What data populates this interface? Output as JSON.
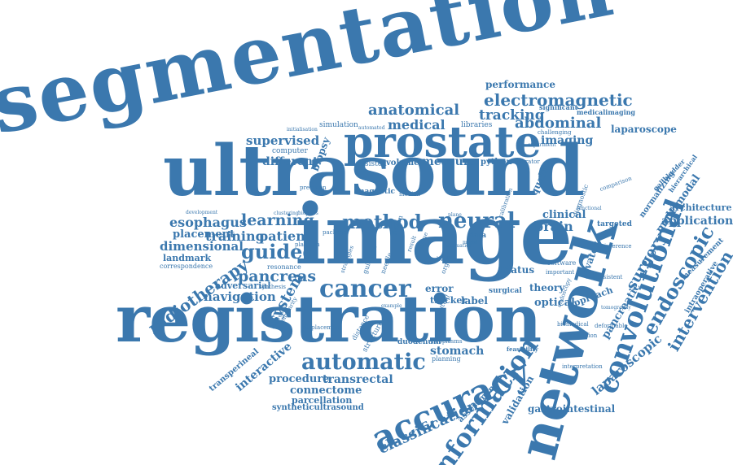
{
  "colors": {
    "text": "#3b78ae",
    "background": "#ffffff"
  },
  "words": {
    "segmentation": "segmentation",
    "ultrasound": "ultrasound",
    "image": "image",
    "registration": "registration",
    "network": "network",
    "prostate": "prostate",
    "convolutional": "convolutional",
    "accuracy": "accuracy",
    "information": "information",
    "electromagnetic": "electromagnetic",
    "abdominal": "abdominal",
    "tracking": "tracking",
    "anatomical": "anatomical",
    "medical": "medical",
    "imaging": "imaging",
    "performance": "performance",
    "laparoscope": "laparoscope",
    "cancer": "cancer",
    "automatic": "automatic",
    "classification": "classification",
    "endoscopic": "endoscopic",
    "intervention": "intervention",
    "laparoscopic": "laparoscopic",
    "method": "method",
    "neural": "neural",
    "learning": "learning",
    "guided": "guided",
    "pancreas": "pancreas",
    "training": "training",
    "patient": "patient",
    "dimensional": "dimensional",
    "esophagus": "esophagus",
    "placement": "placement",
    "landmark": "landmark",
    "correspondence": "correspondence",
    "radiotherapy": "radiotherapy",
    "navigation": "navigation",
    "adversarial": "adversarial",
    "system": "system",
    "surgery": "surgery",
    "application": "application",
    "multimodal": "multimodal",
    "architecture": "architecture",
    "measure": "measure",
    "volume": "volume",
    "python": "python",
    "supervised": "supervised",
    "computer": "computer",
    "different": "different",
    "biopsy": "biopsy",
    "simulation": "simulation",
    "libraries": "libraries",
    "significant": "significant",
    "medicalimaging": "medicalimaging",
    "brain": "brain",
    "clinical": "clinical",
    "data": "data",
    "error": "error",
    "tracker": "tracker",
    "label": "label",
    "optical": "optical",
    "theory": "theory",
    "approach": "approach",
    "hiatus": "hiatus",
    "surgical": "surgical",
    "targeted": "targeted",
    "levator": "levator",
    "quality": "quality",
    "gallbladder": "gallbladder",
    "hierarchical": "hierarchical",
    "normalizing": "normalizing",
    "comparison": "comparison",
    "diagnostic": "diagnostic",
    "pancreatic": "pancreatic",
    "measurement": "measurement",
    "intraoperative": "intraoperative",
    "transperineal": "transperineal",
    "interactive": "interactive",
    "procedure": "procedure",
    "transrectal": "transrectal",
    "connectome": "connectome",
    "parcellation": "parcellation",
    "syntheticultrasound": "syntheticultrasound",
    "stomach": "stomach",
    "planning": "planning",
    "assessment": "assessment",
    "validation": "validation",
    "gastrointestinal": "gastrointestinal",
    "interpretation": "interpretation",
    "feasibility": "feasibility",
    "duodenum": "duodenum",
    "neoplasms": "neoplasms",
    "resonance": "resonance",
    "synthesis": "synthesis",
    "platform": "platform",
    "package": "package",
    "biopsies": "biopsies",
    "clustering": "clustering",
    "development": "development",
    "precision": "precision",
    "assisted": "assisted",
    "operator": "operator",
    "calibration": "calibration",
    "magnetic": "magnetic",
    "median": "median",
    "challenging": "challenging",
    "experiment": "experiment",
    "initialisation": "initialisation",
    "software": "software",
    "biomedical": "biomedical",
    "deformable": "deformable",
    "tomography": "tomography",
    "functional": "functional",
    "inference": "inference",
    "detection": "detection",
    "structure": "structure",
    "displacement": "displacement",
    "distance": "distance",
    "mutual": "mutual",
    "guidance": "guidance",
    "strategies": "strategies",
    "organ": "organ",
    "liver": "liver",
    "needle": "needle",
    "fusion": "fusion",
    "automated": "automated",
    "evaluation": "evaluation",
    "important": "important",
    "consistent": "consistent",
    "similarity": "similarity",
    "difference": "difference",
    "endoscopy": "endoscopy",
    "example": "example",
    "tissue": "tissue",
    "result": "result",
    "model": "model",
    "plane": "plane"
  }
}
